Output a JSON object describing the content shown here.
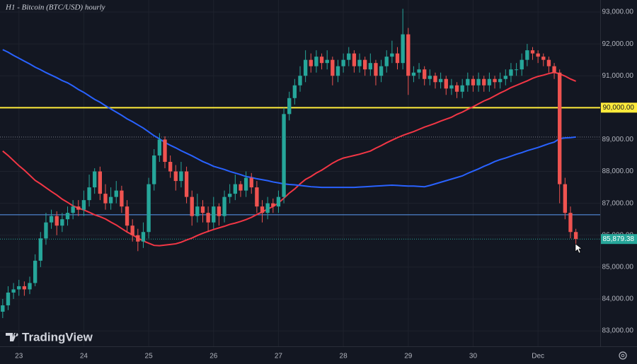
{
  "chart_data": {
    "type": "candlestick",
    "title": "H1 - Bitcoin (BTC/USD) hourly",
    "watermark": "TradingView",
    "categories": [
      null,
      null,
      null,
      "23",
      null,
      null,
      null,
      null,
      null,
      null,
      null,
      null,
      null,
      null,
      null,
      "24",
      null,
      null,
      null,
      null,
      null,
      null,
      null,
      null,
      null,
      null,
      null,
      "25",
      null,
      null,
      null,
      null,
      null,
      null,
      null,
      null,
      null,
      null,
      null,
      "26",
      null,
      null,
      null,
      null,
      null,
      null,
      null,
      null,
      null,
      null,
      null,
      "27",
      null,
      null,
      null,
      null,
      null,
      null,
      null,
      null,
      null,
      null,
      null,
      "28",
      null,
      null,
      null,
      null,
      null,
      null,
      null,
      null,
      null,
      null,
      null,
      "29",
      null,
      null,
      null,
      null,
      null,
      null,
      null,
      null,
      null,
      null,
      null,
      "30",
      null,
      null,
      null,
      null,
      null,
      null,
      null,
      null,
      null,
      null,
      null,
      "Dec",
      null,
      null,
      null,
      null,
      null,
      null,
      null
    ],
    "open": [
      83600,
      83800,
      84200,
      84300,
      84400,
      84300,
      84500,
      85200,
      85900,
      86400,
      86600,
      86300,
      86500,
      86700,
      86900,
      86800,
      87100,
      87500,
      88000,
      87300,
      87000,
      87200,
      87400,
      86900,
      86300,
      86000,
      85800,
      86100,
      87600,
      88500,
      89000,
      88300,
      88000,
      87700,
      88000,
      87200,
      86600,
      86900,
      86700,
      86400,
      86900,
      86600,
      87200,
      87300,
      87600,
      87400,
      87800,
      87500,
      86900,
      86700,
      87000,
      86900,
      87200,
      89800,
      90300,
      90700,
      91000,
      91500,
      91300,
      91600,
      91400,
      91500,
      91000,
      91300,
      91500,
      91700,
      91300,
      91500,
      91200,
      91400,
      91000,
      91300,
      91600,
      91700,
      91400,
      92300,
      91000,
      91100,
      91200,
      90900,
      91000,
      90800,
      90900,
      90600,
      90700,
      90500,
      90700,
      90900,
      90700,
      90900,
      90700,
      90900,
      90800,
      90900,
      91000,
      91200,
      91200,
      91500,
      91800,
      91700,
      91600,
      91500,
      91300,
      91100,
      87600,
      86700,
      86100
    ],
    "high": [
      84000,
      84400,
      84500,
      84600,
      84550,
      84700,
      85400,
      86100,
      86700,
      86800,
      86750,
      86700,
      86900,
      87100,
      87100,
      87400,
      87900,
      88100,
      88150,
      87600,
      87500,
      87700,
      87550,
      87100,
      86500,
      86200,
      86400,
      87800,
      88700,
      89200,
      89100,
      88500,
      88200,
      88300,
      88150,
      87400,
      87300,
      87100,
      86900,
      87200,
      87000,
      87400,
      87600,
      87900,
      87700,
      88000,
      87950,
      87700,
      87100,
      87200,
      87150,
      87400,
      90000,
      90500,
      90900,
      91300,
      91800,
      91700,
      91800,
      91700,
      91800,
      91600,
      91500,
      91700,
      91900,
      91800,
      91700,
      91600,
      91700,
      91500,
      91500,
      91800,
      92100,
      91900,
      93100,
      92500,
      91300,
      91400,
      91300,
      91200,
      91100,
      91100,
      91000,
      90900,
      90800,
      90900,
      91100,
      91000,
      91100,
      91000,
      91100,
      91000,
      91100,
      91200,
      91400,
      91400,
      91700,
      92000,
      91900,
      91800,
      91700,
      91600,
      91400,
      91200,
      87800,
      86900,
      86200
    ],
    "low": [
      83400,
      83650,
      84000,
      84100,
      84100,
      84150,
      84400,
      85000,
      85700,
      86200,
      86000,
      86100,
      86300,
      86500,
      86600,
      86600,
      86900,
      87300,
      87100,
      86800,
      86800,
      87000,
      86700,
      86100,
      85800,
      85500,
      85600,
      85900,
      87400,
      88300,
      88100,
      87800,
      87400,
      87500,
      87000,
      86300,
      86400,
      86400,
      86100,
      86200,
      86300,
      86400,
      87000,
      87100,
      87200,
      87200,
      87300,
      86700,
      86400,
      86500,
      86700,
      86700,
      87000,
      89600,
      90100,
      90500,
      90800,
      91100,
      91100,
      91200,
      91200,
      90700,
      90800,
      91100,
      91300,
      91100,
      91100,
      91000,
      91000,
      90700,
      90800,
      91100,
      91400,
      91200,
      91200,
      90400,
      90800,
      90900,
      90700,
      90700,
      90600,
      90600,
      90400,
      90400,
      90300,
      90300,
      90500,
      90500,
      90500,
      90500,
      90500,
      90600,
      90600,
      90700,
      90800,
      91000,
      91000,
      91300,
      91500,
      91400,
      91300,
      91100,
      90900,
      87000,
      86500,
      85900,
      85700
    ],
    "close": [
      83800,
      84200,
      84300,
      84400,
      84300,
      84500,
      85200,
      85900,
      86400,
      86600,
      86300,
      86500,
      86700,
      86900,
      86800,
      87100,
      87500,
      88000,
      87300,
      87000,
      87200,
      87400,
      86900,
      86300,
      86000,
      85800,
      86100,
      87600,
      88500,
      89000,
      88300,
      88000,
      87700,
      88000,
      87200,
      86600,
      86900,
      86700,
      86400,
      86900,
      86600,
      87200,
      87300,
      87600,
      87400,
      87800,
      87500,
      86900,
      86700,
      87000,
      86900,
      87200,
      89800,
      90300,
      90700,
      91000,
      91500,
      91300,
      91600,
      91400,
      91500,
      91000,
      91300,
      91500,
      91700,
      91300,
      91500,
      91200,
      91400,
      91000,
      91300,
      91600,
      91700,
      91400,
      92300,
      91000,
      91100,
      91200,
      90900,
      91000,
      90800,
      90900,
      90600,
      90700,
      90500,
      90700,
      90900,
      90700,
      90900,
      90700,
      90900,
      90800,
      90900,
      91000,
      91200,
      91200,
      91500,
      91800,
      91700,
      91600,
      91500,
      91300,
      91100,
      87600,
      86700,
      86100,
      85879.38
    ],
    "up_color": "#26a69a",
    "down_color": "#ef5350",
    "moving_averages": [
      {
        "color": "#f23645",
        "values": [
          88640,
          88500,
          88340,
          88180,
          88040,
          87880,
          87720,
          87610,
          87490,
          87370,
          87260,
          87130,
          87030,
          86920,
          86850,
          86790,
          86720,
          86640,
          86580,
          86510,
          86410,
          86320,
          86210,
          86100,
          86010,
          85910,
          85820,
          85750,
          85680,
          85670,
          85690,
          85710,
          85730,
          85780,
          85850,
          85910,
          85990,
          86060,
          86120,
          86180,
          86230,
          86280,
          86340,
          86380,
          86430,
          86490,
          86560,
          86650,
          86730,
          86820,
          86900,
          87010,
          87160,
          87320,
          87450,
          87610,
          87750,
          87840,
          87950,
          88040,
          88150,
          88260,
          88350,
          88420,
          88460,
          88500,
          88540,
          88590,
          88640,
          88730,
          88810,
          88900,
          88980,
          89060,
          89130,
          89190,
          89250,
          89320,
          89390,
          89450,
          89510,
          89580,
          89640,
          89700,
          89790,
          89860,
          89950,
          90030,
          90120,
          90210,
          90280,
          90370,
          90460,
          90540,
          90630,
          90700,
          90770,
          90840,
          90920,
          90980,
          91020,
          91070,
          91110,
          91060,
          90990,
          90900,
          90830
        ]
      },
      {
        "color": "#2962ff",
        "values": [
          91820,
          91740,
          91640,
          91550,
          91460,
          91370,
          91270,
          91190,
          91100,
          91020,
          90940,
          90850,
          90780,
          90680,
          90570,
          90480,
          90370,
          90260,
          90170,
          90060,
          89960,
          89860,
          89760,
          89650,
          89560,
          89460,
          89360,
          89240,
          89120,
          89020,
          88910,
          88820,
          88740,
          88650,
          88570,
          88490,
          88400,
          88310,
          88240,
          88160,
          88110,
          88060,
          88000,
          87950,
          87900,
          87840,
          87810,
          87770,
          87740,
          87710,
          87670,
          87640,
          87610,
          87590,
          87580,
          87560,
          87540,
          87520,
          87510,
          87500,
          87500,
          87500,
          87500,
          87500,
          87500,
          87500,
          87510,
          87520,
          87530,
          87540,
          87550,
          87560,
          87570,
          87560,
          87550,
          87540,
          87540,
          87530,
          87520,
          87560,
          87610,
          87660,
          87710,
          87760,
          87810,
          87860,
          87940,
          88010,
          88080,
          88160,
          88230,
          88310,
          88370,
          88420,
          88480,
          88540,
          88590,
          88650,
          88700,
          88750,
          88810,
          88870,
          88920,
          89030,
          89050,
          89060,
          89080
        ]
      }
    ],
    "levels": [
      {
        "value": 89080,
        "color": "#787b86",
        "style": "dotted"
      },
      {
        "value": 86640,
        "color": "#5b9cf6",
        "style": "solid"
      },
      {
        "value": 90000,
        "color": "#ffeb3b",
        "style": "solid",
        "label": "90,000.00"
      }
    ],
    "last_price": {
      "value": 85879.38,
      "label": "85,879.38",
      "color": "#26a69a"
    },
    "ylim": [
      82514,
      93377
    ],
    "yticks": [
      {
        "value": 83000,
        "label": "83,000.00"
      },
      {
        "value": 84000,
        "label": "84,000.00"
      },
      {
        "value": 85000,
        "label": "85,000.00"
      },
      {
        "value": 86000,
        "label": "86,000.00"
      },
      {
        "value": 87000,
        "label": "87,000.00"
      },
      {
        "value": 88000,
        "label": "88,000.00"
      },
      {
        "value": 89000,
        "label": "89,000.00"
      },
      {
        "value": 90000,
        "label": "90,000.00"
      },
      {
        "value": 91000,
        "label": "91,000.00"
      },
      {
        "value": 92000,
        "label": "92,000.00"
      },
      {
        "value": 93000,
        "label": "93,000.00"
      }
    ],
    "grid": true
  }
}
